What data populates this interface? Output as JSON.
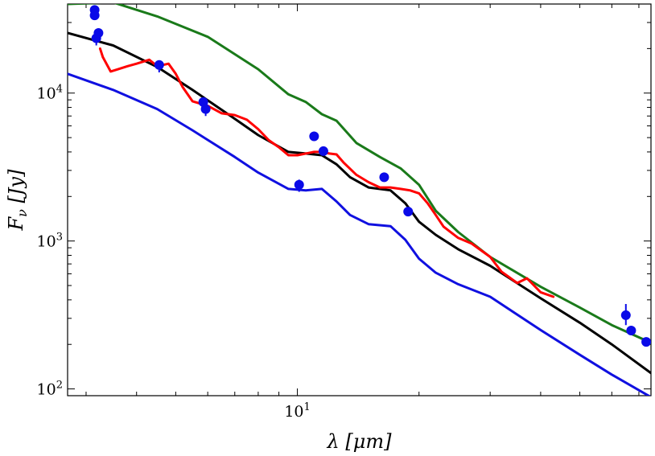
{
  "chart_data": {
    "type": "line",
    "title": "",
    "xlabel": "λ [μm]",
    "ylabel": "F_ν [Jy]",
    "x_scale": "log",
    "y_scale": "log",
    "xlim": [
      2.7,
      75
    ],
    "ylim": [
      90,
      40000
    ],
    "x_ticks": [
      {
        "value": 10,
        "label": "10^1"
      }
    ],
    "y_ticks": [
      {
        "value": 100,
        "label": "10^2"
      },
      {
        "value": 1000,
        "label": "10^3"
      },
      {
        "value": 10000,
        "label": "10^4"
      }
    ],
    "grid": false,
    "legend": "none",
    "colors": {
      "green": "#1a7a1a",
      "black": "#000000",
      "blue": "#1010e0",
      "red": "#ff0000",
      "points": "#0a0ae8"
    },
    "series": [
      {
        "color": "#1a7a1a",
        "x": [
          2.7,
          3.5,
          4.5,
          6.0,
          8.0,
          9.5,
          10.5,
          11.5,
          12.5,
          14.0,
          16.0,
          18.0,
          20.0,
          22.0,
          25.0,
          30.0,
          40.0,
          50.0,
          60.0,
          75.0
        ],
        "y": [
          40000,
          41000,
          33000,
          24000,
          14500,
          9800,
          8700,
          7200,
          6500,
          4600,
          3700,
          3100,
          2400,
          1600,
          1150,
          780,
          490,
          355,
          270,
          205
        ]
      },
      {
        "color": "#000000",
        "x": [
          2.7,
          3.5,
          4.5,
          5.5,
          7.0,
          8.0,
          9.5,
          10.5,
          11.5,
          12.5,
          13.5,
          15.0,
          17.0,
          18.5,
          20.0,
          22.0,
          25.0,
          30.0,
          40.0,
          50.0,
          60.0,
          75.0
        ],
        "y": [
          25500,
          21000,
          15000,
          10500,
          6700,
          5200,
          4000,
          3900,
          3800,
          3300,
          2700,
          2300,
          2200,
          1800,
          1350,
          1100,
          880,
          680,
          410,
          280,
          200,
          128
        ]
      },
      {
        "color": "#1010e0",
        "x": [
          2.7,
          3.5,
          4.5,
          5.5,
          7.0,
          8.0,
          9.5,
          10.5,
          11.5,
          12.5,
          13.5,
          15.0,
          17.0,
          18.5,
          20.0,
          22.0,
          25.0,
          30.0,
          40.0,
          50.0,
          60.0,
          75.0
        ],
        "y": [
          13500,
          10500,
          7800,
          5600,
          3700,
          2900,
          2250,
          2200,
          2250,
          1850,
          1500,
          1300,
          1260,
          1020,
          760,
          610,
          510,
          420,
          250,
          170,
          125,
          88
        ]
      },
      {
        "color": "#ff0000",
        "x": [
          3.25,
          3.3,
          3.45,
          3.6,
          3.8,
          4.0,
          4.3,
          4.5,
          4.8,
          5.0,
          5.2,
          5.5,
          6.0,
          6.5,
          7.0,
          7.5,
          8.0,
          8.5,
          9.0,
          9.5,
          10.0,
          10.5,
          11.0,
          11.5,
          12.0,
          12.5,
          13.0,
          14.0,
          15.0,
          16.0,
          17.0,
          18.0,
          19.0,
          20.0,
          21.0,
          22.0,
          23.0,
          25.0,
          27.0,
          30.0,
          32.0,
          35.0,
          37.0,
          40.0,
          43.0
        ],
        "y": [
          20000,
          17500,
          14000,
          14500,
          15200,
          15800,
          16800,
          15200,
          15800,
          13500,
          11000,
          8800,
          8200,
          7300,
          7100,
          6600,
          5700,
          4800,
          4300,
          3800,
          3800,
          3900,
          4000,
          4000,
          3900,
          3850,
          3400,
          2800,
          2500,
          2300,
          2300,
          2250,
          2200,
          2100,
          1800,
          1500,
          1250,
          1050,
          960,
          780,
          620,
          520,
          560,
          450,
          420
        ]
      }
    ],
    "points": {
      "color": "#0a0ae8",
      "x": [
        3.15,
        3.15,
        3.18,
        3.22,
        4.55,
        5.85,
        5.93,
        10.1,
        11.0,
        11.6,
        16.4,
        18.8,
        65.0,
        67.0,
        73.0
      ],
      "y": [
        36500,
        33500,
        23500,
        25500,
        15500,
        8700,
        7800,
        2400,
        5100,
        4050,
        2700,
        1580,
        315,
        248,
        208
      ],
      "err_lo": [
        0,
        0,
        21000,
        0,
        13800,
        0,
        7000,
        2150,
        0,
        0,
        0,
        0,
        270,
        0,
        0
      ],
      "err_hi": [
        0,
        0,
        27000,
        0,
        16500,
        0,
        8500,
        2600,
        0,
        0,
        0,
        0,
        375,
        0,
        0
      ]
    }
  }
}
